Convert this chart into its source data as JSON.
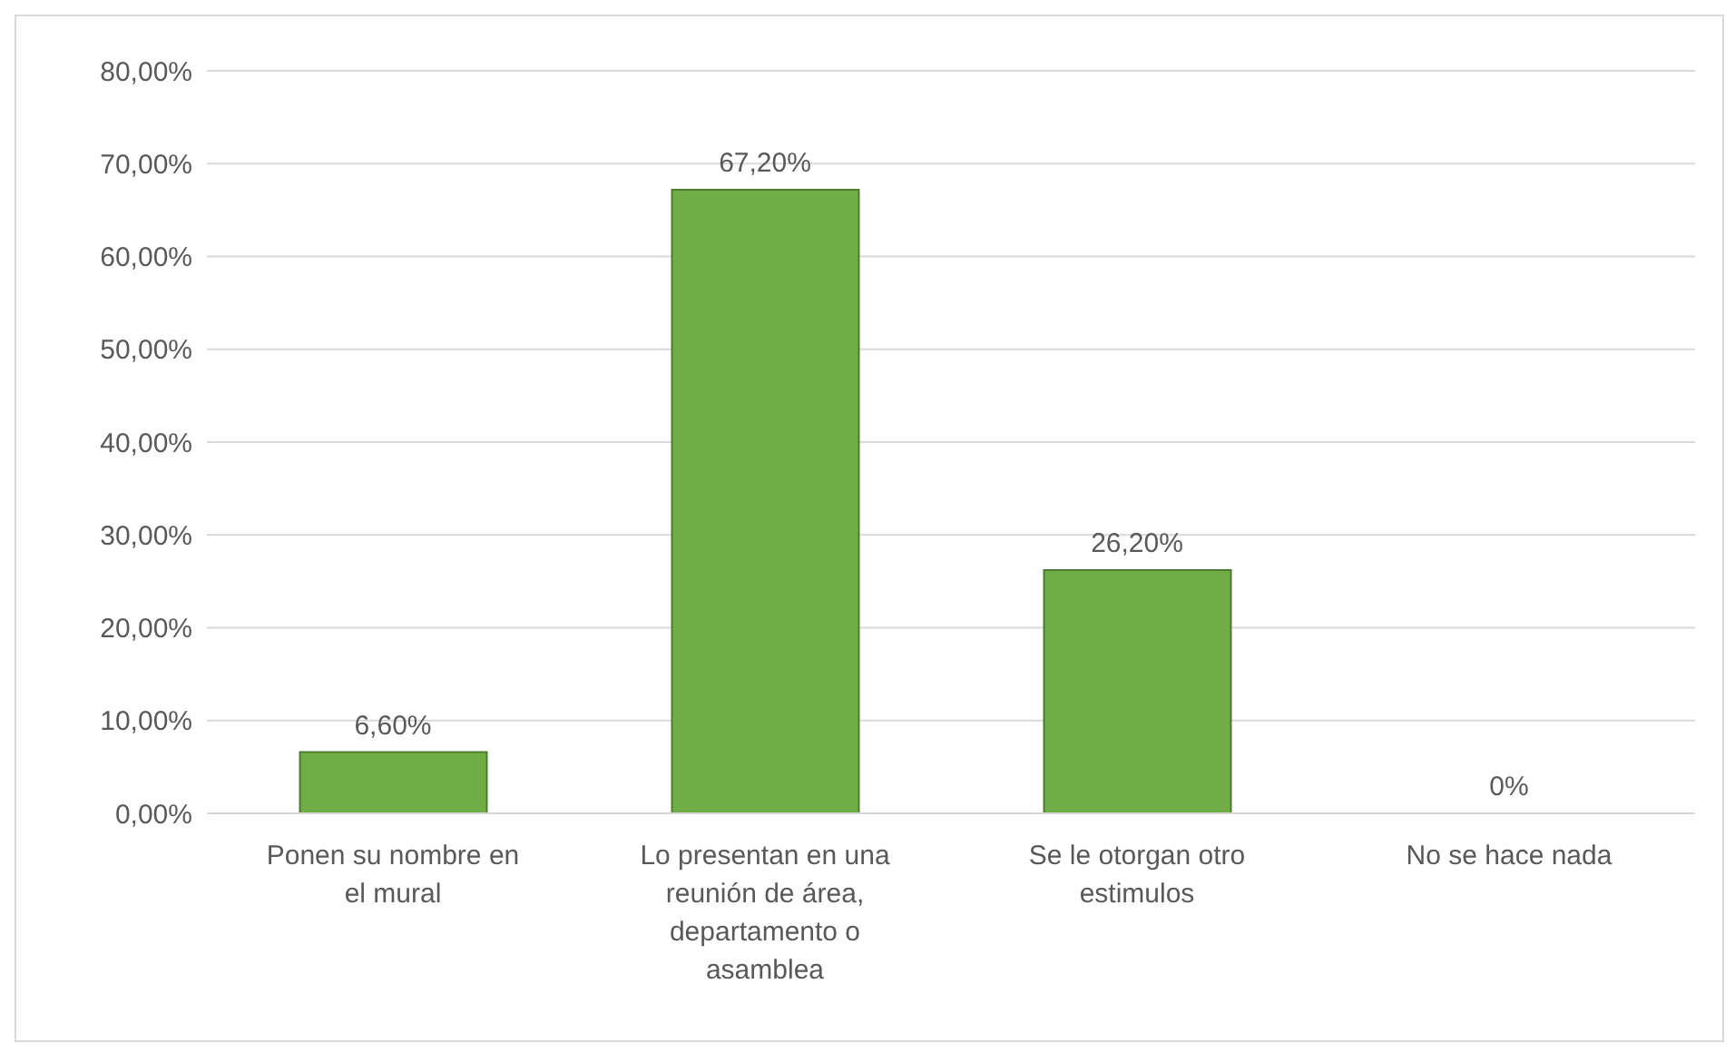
{
  "chart_data": {
    "type": "bar",
    "categories": [
      "Ponen su nombre en el mural",
      "Lo presentan en una reunión de área, departamento o asamblea",
      "Se le otorgan otro estimulos",
      "No se hace nada"
    ],
    "values": [
      6.6,
      67.2,
      26.2,
      0
    ],
    "value_labels": [
      "6,60%",
      "67,20%",
      "26,20%",
      "0%"
    ],
    "color": "#70ad47",
    "ylim": [
      0,
      80
    ],
    "yticks": [
      {
        "value": 0,
        "label": "0,00%"
      },
      {
        "value": 10,
        "label": "10,00%"
      },
      {
        "value": 20,
        "label": "20,00%"
      },
      {
        "value": 30,
        "label": "30,00%"
      },
      {
        "value": 40,
        "label": "40,00%"
      },
      {
        "value": 50,
        "label": "50,00%"
      },
      {
        "value": 60,
        "label": "60,00%"
      },
      {
        "value": 70,
        "label": "70,00%"
      },
      {
        "value": 80,
        "label": "80,00%"
      }
    ],
    "grid": "y",
    "legend": false
  }
}
